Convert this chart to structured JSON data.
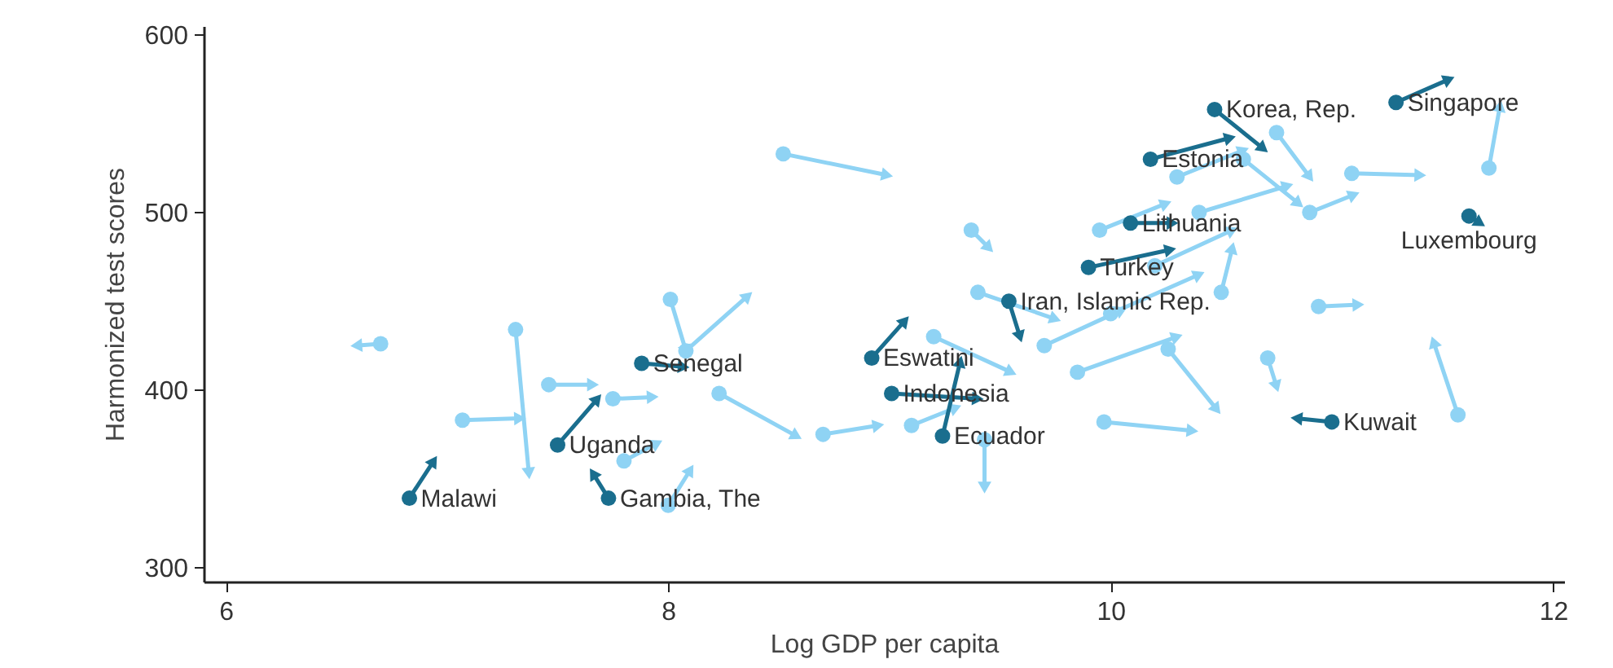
{
  "chart_data": {
    "type": "scatter",
    "xlabel": "Log GDP per capita",
    "ylabel": "Harmonized test scores",
    "xlim": [
      5.9,
      12.05
    ],
    "ylim": [
      292,
      605
    ],
    "xticks": [
      6,
      8,
      10,
      12
    ],
    "yticks": [
      300,
      400,
      500,
      600
    ],
    "grid": false,
    "series": [
      {
        "type": "line",
        "color": "#8fd3f4",
        "marker": "triangle",
        "x": [
          6.7,
          6.59,
          null,
          7.31,
          7.37,
          null,
          7.07,
          7.33,
          null,
          7.46,
          7.66,
          null,
          7.75,
          7.93,
          null,
          8.01,
          8.08,
          null,
          8.08,
          8.36,
          null,
          8.23,
          8.58,
          null,
          8.52,
          8.99,
          null,
          9.37,
          9.45,
          null,
          9.43,
          9.43,
          null,
          9.97,
          10.37,
          null,
          10.26,
          10.48,
          null,
          10.71,
          10.75,
          null,
          10.94,
          11.12,
          null,
          11.57,
          11.46,
          null,
          11.71,
          11.76,
          null,
          11.09,
          11.4,
          null,
          9.4,
          9.75,
          null,
          9.2,
          9.55,
          null,
          9.85,
          10.3,
          null,
          10.2,
          10.55,
          null,
          10.4,
          10.8,
          null,
          10.6,
          10.85,
          null,
          10.75,
          10.9,
          null,
          10.3,
          10.6,
          null,
          9.1,
          9.3,
          null,
          8.7,
          8.95,
          null,
          7.8,
          7.95,
          null,
          8.0,
          8.1,
          null,
          10.0,
          10.4,
          null,
          10.9,
          11.1,
          null,
          10.5,
          10.55,
          null,
          9.7,
          10.05,
          null,
          9.95,
          10.25
        ],
        "values": [
          426,
          425,
          null,
          434,
          353,
          null,
          383,
          384,
          null,
          403,
          403,
          null,
          395,
          396,
          null,
          451,
          422,
          null,
          422,
          453,
          null,
          398,
          374,
          null,
          533,
          521,
          null,
          490,
          480,
          null,
          372,
          345,
          null,
          382,
          377,
          null,
          423,
          389,
          null,
          418,
          402,
          null,
          447,
          448,
          null,
          386,
          427,
          null,
          525,
          560,
          null,
          522,
          521,
          null,
          455,
          440,
          null,
          430,
          410,
          null,
          410,
          430,
          null,
          470,
          490,
          null,
          500,
          515,
          null,
          530,
          505,
          null,
          545,
          520,
          null,
          520,
          535,
          null,
          380,
          390,
          null,
          375,
          380,
          null,
          360,
          370,
          null,
          335,
          355,
          null,
          443,
          465,
          null,
          500,
          510,
          null,
          455,
          480,
          null,
          425,
          445,
          null,
          490,
          505
        ]
      },
      {
        "color": "#8fd3f4",
        "marker": "circle",
        "x": [
          6.7,
          7.31,
          7.07,
          7.46,
          7.75,
          8.01,
          8.08,
          8.23,
          8.52,
          9.37,
          9.43,
          9.97,
          10.26,
          10.71,
          10.94,
          11.57,
          11.71,
          11.09,
          9.4,
          9.2,
          9.85,
          10.2,
          10.4,
          10.6,
          10.75,
          10.3,
          9.1,
          8.7,
          7.8,
          8.0,
          10.0,
          10.9,
          10.5,
          9.7,
          9.95
        ],
        "values": [
          426,
          434,
          383,
          403,
          395,
          451,
          422,
          398,
          533,
          490,
          372,
          382,
          423,
          418,
          447,
          386,
          525,
          522,
          455,
          430,
          410,
          470,
          500,
          530,
          545,
          520,
          380,
          375,
          360,
          335,
          443,
          500,
          455,
          425,
          490
        ]
      },
      {
        "type": "line",
        "color": "#1a6e8e",
        "marker": "triangle",
        "x": [
          6.83,
          6.94,
          null,
          7.73,
          7.66,
          null,
          7.5,
          7.68,
          null,
          7.88,
          8.07,
          null,
          8.92,
          9.07,
          null,
          9.01,
          9.4,
          null,
          9.24,
          9.32,
          null,
          9.54,
          9.59,
          null,
          9.9,
          10.27,
          null,
          10.09,
          10.28,
          null,
          10.18,
          10.54,
          null,
          10.47,
          10.69,
          null,
          11.29,
          11.53,
          null,
          11.62,
          11.67,
          null,
          11.0,
          10.84
        ],
        "values": [
          339,
          360,
          null,
          339,
          353,
          null,
          369,
          395,
          null,
          415,
          413,
          null,
          418,
          439,
          null,
          398,
          395,
          null,
          374,
          416,
          null,
          450,
          430,
          null,
          469,
          479,
          null,
          494,
          494,
          null,
          530,
          542,
          null,
          558,
          536,
          null,
          562,
          575,
          null,
          498,
          494,
          null,
          382,
          384
        ]
      },
      {
        "color": "#1a6e8e",
        "marker": "circle",
        "x": [
          6.83,
          7.73,
          7.5,
          7.88,
          8.92,
          9.01,
          9.24,
          9.54,
          9.9,
          10.09,
          10.18,
          10.47,
          11.29,
          11.62,
          11.0
        ],
        "values": [
          339,
          339,
          369,
          415,
          418,
          398,
          374,
          450,
          469,
          494,
          530,
          558,
          562,
          498,
          382
        ]
      }
    ],
    "annotations": [
      {
        "text": "Malawi",
        "x": 6.83,
        "y": 339
      },
      {
        "text": "Gambia, The",
        "x": 7.73,
        "y": 339
      },
      {
        "text": "Uganda",
        "x": 7.5,
        "y": 369
      },
      {
        "text": "Senegal",
        "x": 7.88,
        "y": 415
      },
      {
        "text": "Eswatini",
        "x": 8.92,
        "y": 418
      },
      {
        "text": "Indonesia",
        "x": 9.01,
        "y": 398
      },
      {
        "text": "Ecuador",
        "x": 9.24,
        "y": 374
      },
      {
        "text": "Iran, Islamic Rep.",
        "x": 9.54,
        "y": 450
      },
      {
        "text": "Turkey",
        "x": 9.9,
        "y": 469
      },
      {
        "text": "Lithuania",
        "x": 10.09,
        "y": 494
      },
      {
        "text": "Estonia",
        "x": 10.18,
        "y": 530
      },
      {
        "text": "Korea, Rep.",
        "x": 10.47,
        "y": 558
      },
      {
        "text": "Singapore",
        "x": 11.29,
        "y": 562
      },
      {
        "text": "Luxembourg",
        "x": 11.62,
        "y": 498
      },
      {
        "text": "Kuwait",
        "x": 11.0,
        "y": 382
      }
    ]
  }
}
